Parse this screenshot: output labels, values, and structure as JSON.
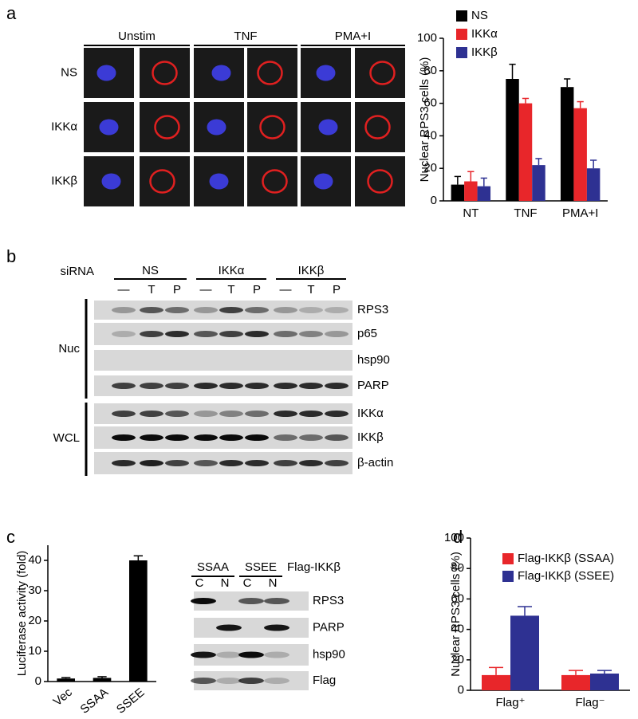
{
  "panel_labels": [
    "a",
    "b",
    "c",
    "d"
  ],
  "micro": {
    "columns": [
      "Unstim",
      "TNF",
      "PMA+I"
    ],
    "rows": [
      "NS",
      "IKKα",
      "IKKβ"
    ]
  },
  "blot_b": {
    "label": "siRNA",
    "groups": [
      "NS",
      "IKKα",
      "IKKβ"
    ],
    "lanes": [
      "—",
      "T",
      "P",
      "—",
      "T",
      "P",
      "—",
      "T",
      "P"
    ],
    "rows": [
      "RPS3",
      "p65",
      "hsp90",
      "PARP",
      "IKKα",
      "IKKβ",
      "β-actin"
    ],
    "sections": [
      "Nuc",
      "WCL"
    ]
  },
  "blot_c": {
    "groups": [
      "SSAA",
      "SSEE"
    ],
    "construct": "Flag-IKKβ",
    "lanes": [
      "C",
      "N",
      "C",
      "N"
    ],
    "rows": [
      "RPS3",
      "PARP",
      "hsp90",
      "Flag"
    ]
  },
  "chart_data": [
    {
      "type": "bar",
      "ylabel": "Nuclear RPS3 cells (%)",
      "categories": [
        "NT",
        "TNF",
        "PMA+I"
      ],
      "series": [
        {
          "name": "NS",
          "color": "#000000",
          "values": [
            10,
            75,
            70
          ],
          "errors": [
            5,
            9,
            5
          ]
        },
        {
          "name": "IKKα",
          "color": "#e8262a",
          "values": [
            12,
            60,
            57
          ],
          "errors": [
            6,
            3,
            4
          ]
        },
        {
          "name": "IKKβ",
          "color": "#2e3192",
          "values": [
            9,
            22,
            20
          ],
          "errors": [
            5,
            4,
            5
          ]
        }
      ],
      "ylim": [
        0,
        100
      ],
      "yticks": [
        0,
        20,
        40,
        60,
        80,
        100
      ]
    },
    {
      "type": "bar",
      "ylabel": "Luciferase activity (fold)",
      "categories": [
        "Vec",
        "SSAA",
        "SSEE"
      ],
      "values": [
        1,
        1.2,
        40
      ],
      "errors": [
        0.3,
        0.4,
        1.5
      ],
      "color": "#000000",
      "ylim": [
        0,
        45
      ],
      "yticks": [
        0,
        10,
        20,
        30,
        40
      ]
    },
    {
      "type": "bar",
      "ylabel": "Nuclear RPS3 cells (%)",
      "categories": [
        "Flag⁺",
        "Flag⁻"
      ],
      "series": [
        {
          "name": "Flag-IKKβ (SSAA)",
          "color": "#e8262a",
          "values": [
            10,
            10
          ],
          "errors": [
            5,
            3
          ]
        },
        {
          "name": "Flag-IKKβ (SSEE)",
          "color": "#2e3192",
          "values": [
            49,
            11
          ],
          "errors": [
            6,
            2
          ]
        }
      ],
      "ylim": [
        0,
        100
      ],
      "yticks": [
        0,
        20,
        40,
        60,
        80,
        100
      ]
    }
  ]
}
